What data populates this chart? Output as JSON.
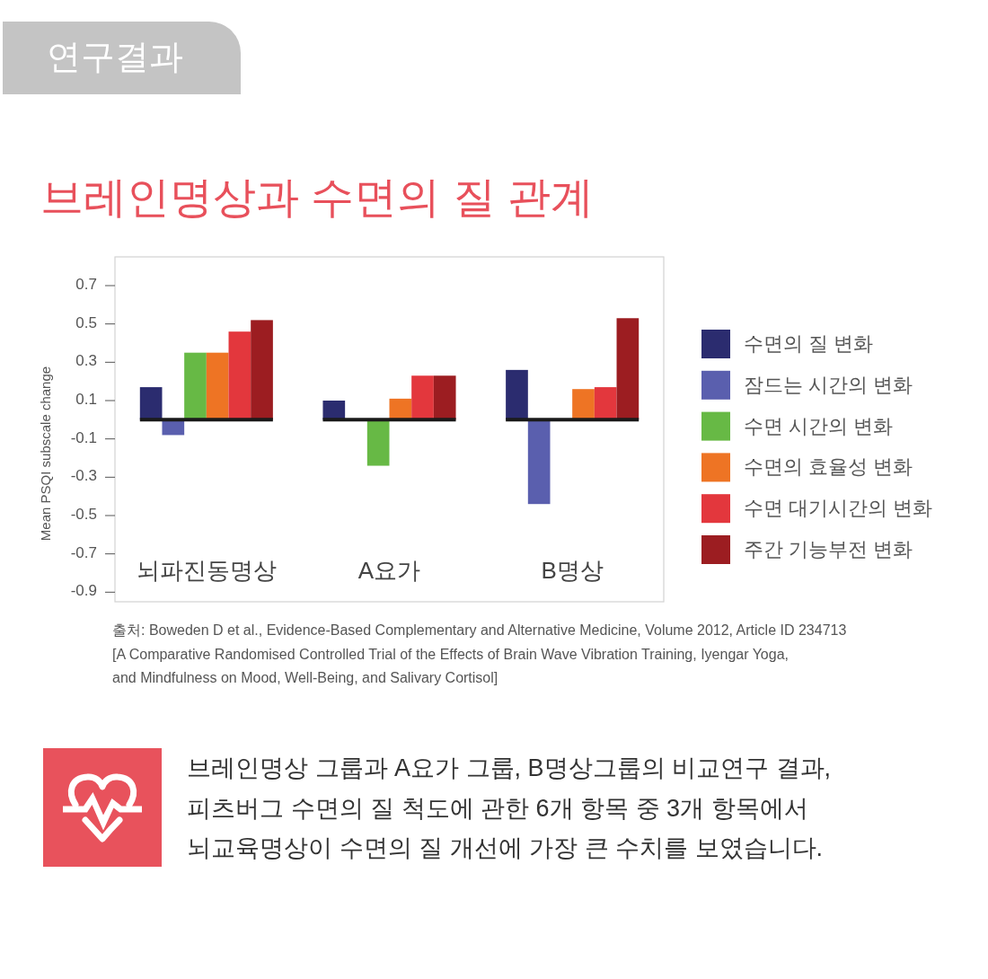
{
  "chart_data": {
    "type": "bar",
    "title": "브레인명상과 수면의 질 관계",
    "ylabel": "Mean PSQI subscale change",
    "categories": [
      "뇌파진동명상",
      "A요가",
      "B명상"
    ],
    "series": [
      {
        "name": "수면의 질 변화",
        "color": "#2b2c6f",
        "values": [
          0.17,
          0.1,
          0.26
        ]
      },
      {
        "name": "잠드는 시간의 변화",
        "color": "#5a5fae",
        "values": [
          -0.08,
          null,
          -0.44
        ]
      },
      {
        "name": "수면 시간의 변화",
        "color": "#67b945",
        "values": [
          0.35,
          -0.24,
          null
        ]
      },
      {
        "name": "수면의 효율성 변화",
        "color": "#ee7424",
        "values": [
          0.35,
          0.11,
          0.16
        ]
      },
      {
        "name": "수면 대기시간의 변화",
        "color": "#e3373d",
        "values": [
          0.46,
          0.23,
          0.17
        ]
      },
      {
        "name": "주간 기능부전 변화",
        "color": "#9c1d21",
        "values": [
          0.52,
          0.23,
          0.53
        ]
      }
    ],
    "ylim": [
      -0.95,
      0.85
    ],
    "yticks": [
      0.7,
      0.5,
      0.3,
      0.1,
      -0.1,
      -0.3,
      -0.5,
      -0.7,
      -0.9
    ],
    "legend": "right",
    "ref_lines": [
      {
        "axis": "y",
        "value": 0,
        "color": "#1a1a1a"
      }
    ],
    "annotations": [
      "연구결과",
      "출처: Boweden D et al., Evidence-Based Complementary and Alternative Medicine, Volume 2012, Article ID 234713\n[A Comparative Randomised Controlled Trial of the Effects of Brain Wave Vibration Training, Iyengar Yoga,\nand Mindfulness on Mood, Well-Being, and Salivary Cortisol]",
      "브레인명상 그룹과 A요가 그룹, B명상그룹의 비교연구 결과,\n피츠버그 수면의 질 척도에 관한 6개 항목 중 3개 항목에서\n뇌교육명상이 수면의 질 개선에 가장 큰 수치를 보였습니다."
    ]
  }
}
